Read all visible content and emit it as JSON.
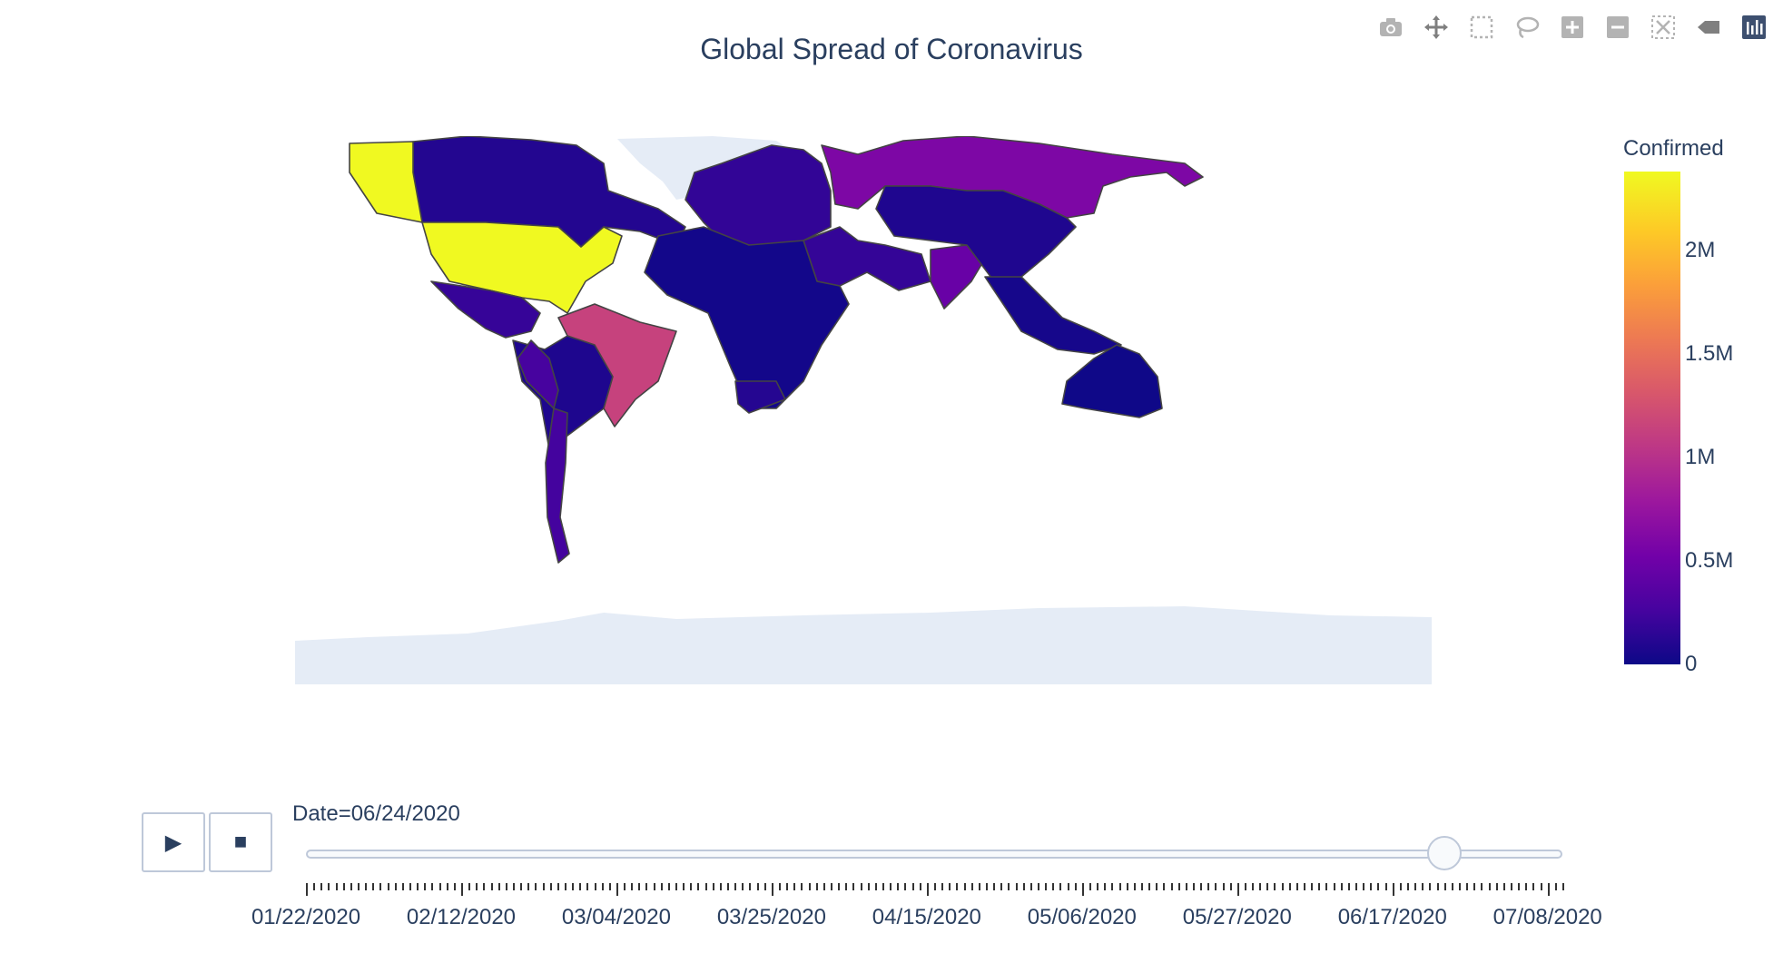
{
  "title": "Global Spread of Coronavirus",
  "modebar": {
    "buttons": [
      "camera-icon",
      "pan-icon",
      "box-select-icon",
      "lasso-icon",
      "zoom-in-icon",
      "zoom-out-icon",
      "autoscale-icon",
      "hover-closest-icon",
      "plotly-logo-icon"
    ]
  },
  "colorbar": {
    "title": "Confirmed",
    "range": [
      0,
      2380000
    ],
    "ticks": [
      {
        "label": "2M",
        "value": 2000000
      },
      {
        "label": "1.5M",
        "value": 1500000
      },
      {
        "label": "1M",
        "value": 1000000
      },
      {
        "label": "0.5M",
        "value": 500000
      },
      {
        "label": "0",
        "value": 0
      }
    ],
    "colors": [
      "#0d0887",
      "#46039f",
      "#7201a8",
      "#9c179e",
      "#bd3786",
      "#d8576b",
      "#ed7953",
      "#fb9f3a",
      "#fdca26",
      "#f0f921"
    ]
  },
  "slider": {
    "label": "Date=06/24/2020",
    "current_index": 154,
    "total_steps": 171,
    "tick_labels": [
      "01/22/2020",
      "02/12/2020",
      "03/04/2020",
      "03/25/2020",
      "04/15/2020",
      "05/06/2020",
      "05/27/2020",
      "06/17/2020",
      "07/08/2020"
    ],
    "label_step_days": 21
  },
  "controls": {
    "play_label": "▶",
    "stop_label": "■"
  },
  "map": {
    "date": "06/24/2020",
    "regions": [
      {
        "name": "USA",
        "confirmed": 2380000
      },
      {
        "name": "Brazil",
        "confirmed": 1150000
      },
      {
        "name": "Russia",
        "confirmed": 600000
      },
      {
        "name": "India",
        "confirmed": 470000
      },
      {
        "name": "Peru",
        "confirmed": 270000
      },
      {
        "name": "Chile",
        "confirmed": 255000
      },
      {
        "name": "Canada",
        "confirmed": 102000
      },
      {
        "name": "Mexico",
        "confirmed": 190000
      },
      {
        "name": "China",
        "confirmed": 84000
      },
      {
        "name": "Australia",
        "confirmed": 7500
      },
      {
        "name": "Africa",
        "confirmed": 30000
      },
      {
        "name": "Europe",
        "confirmed": 170000
      },
      {
        "name": "Middle East",
        "confirmed": 180000
      },
      {
        "name": "South America",
        "confirmed": 80000
      },
      {
        "name": "Southeast Asia",
        "confirmed": 40000
      },
      {
        "name": "South Africa",
        "confirmed": 110000
      },
      {
        "name": "Greenland",
        "confirmed": 0
      },
      {
        "name": "Antarctica",
        "confirmed": 0
      }
    ]
  }
}
